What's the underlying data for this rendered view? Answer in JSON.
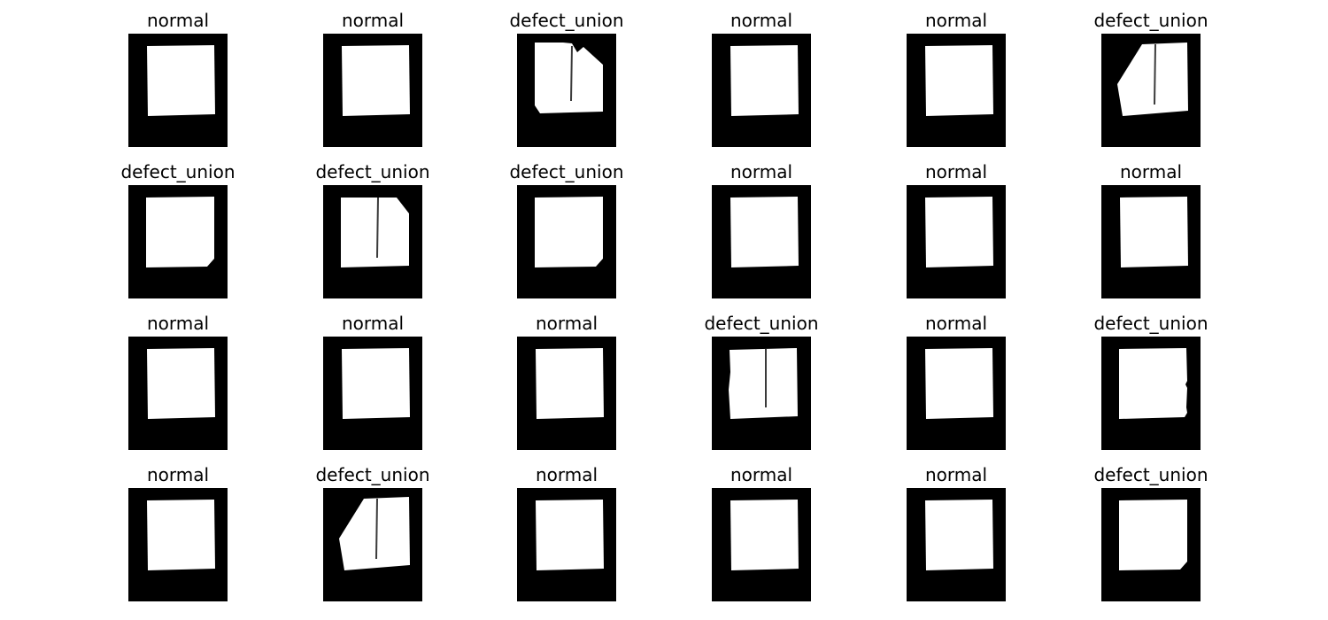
{
  "figure": {
    "columns": 6,
    "background_color": "#000000",
    "foreground_color": "#ffffff",
    "panels": [
      {
        "label": "normal",
        "mask": "square"
      },
      {
        "label": "normal",
        "mask": "square"
      },
      {
        "label": "defect_union",
        "mask": "split-notched"
      },
      {
        "label": "normal",
        "mask": "square"
      },
      {
        "label": "normal",
        "mask": "square"
      },
      {
        "label": "defect_union",
        "mask": "split-cut-left"
      },
      {
        "label": "defect_union",
        "mask": "square-cut-corner"
      },
      {
        "label": "defect_union",
        "mask": "split-cut-right"
      },
      {
        "label": "defect_union",
        "mask": "square-cut-corner"
      },
      {
        "label": "normal",
        "mask": "square"
      },
      {
        "label": "normal",
        "mask": "square"
      },
      {
        "label": "normal",
        "mask": "square"
      },
      {
        "label": "normal",
        "mask": "square"
      },
      {
        "label": "normal",
        "mask": "square"
      },
      {
        "label": "normal",
        "mask": "square"
      },
      {
        "label": "defect_union",
        "mask": "split-rough"
      },
      {
        "label": "normal",
        "mask": "square"
      },
      {
        "label": "defect_union",
        "mask": "square-rough-edge"
      },
      {
        "label": "normal",
        "mask": "square"
      },
      {
        "label": "defect_union",
        "mask": "split-cut-left"
      },
      {
        "label": "normal",
        "mask": "square"
      },
      {
        "label": "normal",
        "mask": "square"
      },
      {
        "label": "normal",
        "mask": "square"
      },
      {
        "label": "defect_union",
        "mask": "square-cut-corner"
      }
    ]
  }
}
